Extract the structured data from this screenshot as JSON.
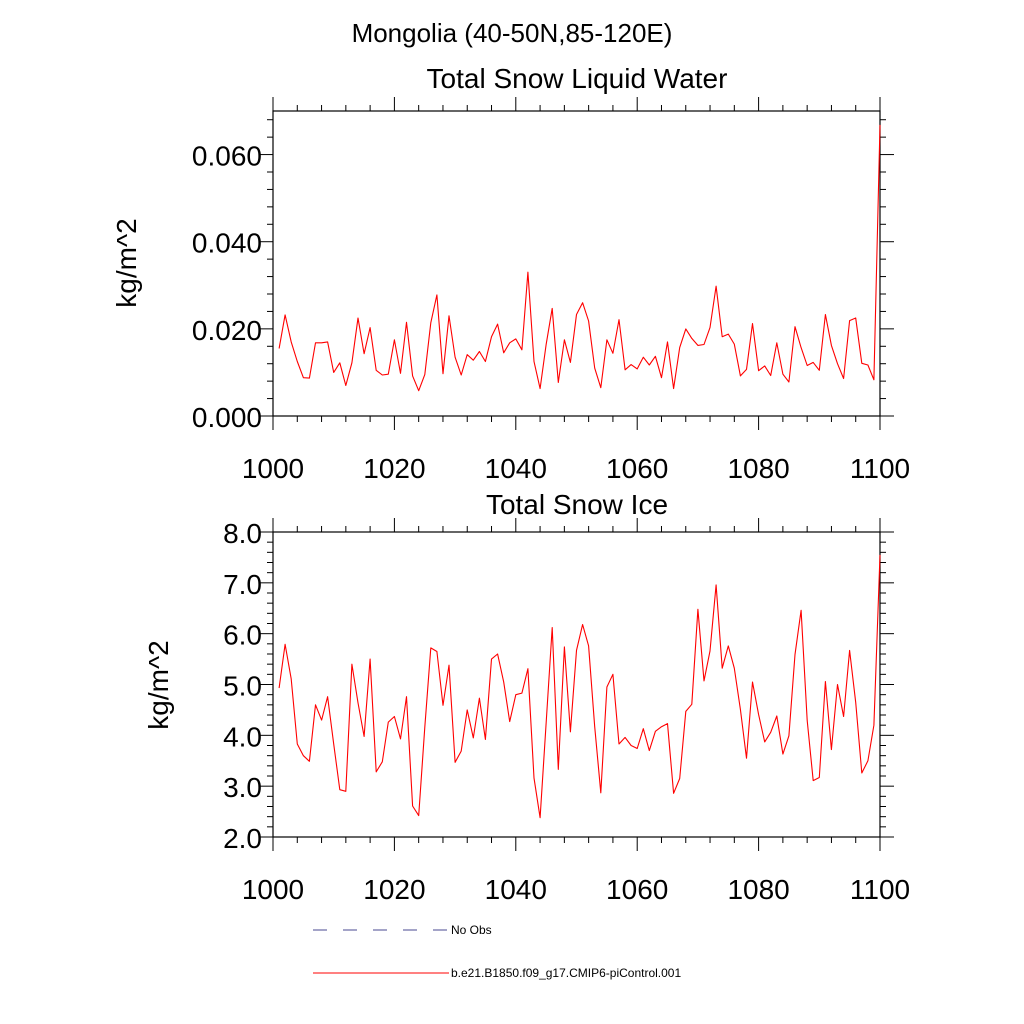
{
  "figure": {
    "suptitle": "Mongolia (40-50N,85-120E)",
    "legend": {
      "position": "bottom-left",
      "entries": [
        {
          "label": "No Obs",
          "style": "dashed",
          "color": "#4a4a90"
        },
        {
          "label": "b.e21.B1850.f09_g17.CMIP6-piControl.001",
          "style": "solid",
          "color": "#ff0000"
        }
      ]
    }
  },
  "chart_data": [
    {
      "type": "line",
      "title": "Total Snow Liquid Water",
      "xlabel": "",
      "ylabel": "kg/m^2",
      "xlim": [
        1000,
        1100
      ],
      "ylim": [
        0,
        0.07
      ],
      "xticks": [
        1000,
        1020,
        1040,
        1060,
        1080,
        1100
      ],
      "yticks": [
        0,
        0.02,
        0.04,
        0.06
      ],
      "ytick_labels": [
        "0.000",
        "0.020",
        "0.040",
        "0.060"
      ],
      "grid": false,
      "series": [
        {
          "name": "b.e21.B1850.f09_g17.CMIP6-piControl.001",
          "color": "#ff0000",
          "x_start": 1001,
          "x_step": 1,
          "values": [
            0.0155,
            0.0232,
            0.017,
            0.0125,
            0.0088,
            0.0087,
            0.0168,
            0.0168,
            0.017,
            0.01,
            0.0122,
            0.007,
            0.0122,
            0.0225,
            0.0143,
            0.0203,
            0.0105,
            0.0094,
            0.0096,
            0.0175,
            0.0098,
            0.0215,
            0.0092,
            0.0058,
            0.0095,
            0.0214,
            0.0278,
            0.0097,
            0.023,
            0.0135,
            0.0094,
            0.0141,
            0.0128,
            0.0148,
            0.0125,
            0.0182,
            0.0211,
            0.0145,
            0.0168,
            0.0177,
            0.0152,
            0.033,
            0.0125,
            0.0063,
            0.0165,
            0.0247,
            0.0077,
            0.0175,
            0.0123,
            0.0233,
            0.026,
            0.0218,
            0.011,
            0.0065,
            0.0175,
            0.0144,
            0.0221,
            0.0106,
            0.0118,
            0.0108,
            0.0135,
            0.0117,
            0.0137,
            0.0088,
            0.017,
            0.0063,
            0.0157,
            0.02,
            0.0178,
            0.0162,
            0.0164,
            0.0203,
            0.0298,
            0.0182,
            0.0188,
            0.0165,
            0.0092,
            0.0107,
            0.0212,
            0.0104,
            0.0115,
            0.0093,
            0.0168,
            0.0096,
            0.0078,
            0.0205,
            0.0157,
            0.0116,
            0.0123,
            0.0105,
            0.0233,
            0.0162,
            0.012,
            0.0086,
            0.0219,
            0.0225,
            0.0121,
            0.0117,
            0.0083,
            0.0668
          ]
        }
      ]
    },
    {
      "type": "line",
      "title": "Total Snow Ice",
      "xlabel": "",
      "ylabel": "kg/m^2",
      "xlim": [
        1000,
        1100
      ],
      "ylim": [
        2.0,
        8.0
      ],
      "xticks": [
        1000,
        1020,
        1040,
        1060,
        1080,
        1100
      ],
      "yticks": [
        2,
        3,
        4,
        5,
        6,
        7,
        8
      ],
      "ytick_labels": [
        "2.0",
        "3.0",
        "4.0",
        "5.0",
        "6.0",
        "7.0",
        "8.0"
      ],
      "grid": false,
      "series": [
        {
          "name": "b.e21.B1850.f09_g17.CMIP6-piControl.001",
          "color": "#ff0000",
          "x_start": 1001,
          "x_step": 1,
          "values": [
            4.93,
            5.79,
            5.11,
            3.83,
            3.6,
            3.49,
            4.6,
            4.3,
            4.76,
            3.83,
            2.93,
            2.9,
            5.4,
            4.64,
            3.98,
            5.5,
            3.28,
            3.48,
            4.26,
            4.37,
            3.93,
            4.76,
            2.61,
            2.42,
            4.16,
            5.72,
            5.65,
            4.59,
            5.38,
            3.47,
            3.69,
            4.5,
            3.95,
            4.73,
            3.92,
            5.5,
            5.6,
            5.05,
            4.27,
            4.8,
            4.83,
            5.31,
            3.16,
            2.38,
            4.26,
            6.12,
            3.33,
            5.74,
            4.07,
            5.67,
            6.18,
            5.76,
            4.17,
            2.87,
            4.95,
            5.2,
            3.83,
            3.96,
            3.8,
            3.74,
            4.13,
            3.7,
            4.08,
            4.17,
            4.23,
            2.86,
            3.15,
            4.47,
            4.61,
            6.48,
            5.07,
            5.66,
            6.96,
            5.32,
            5.76,
            5.32,
            4.51,
            3.55,
            5.05,
            4.41,
            3.87,
            4.06,
            4.38,
            3.63,
            3.99,
            5.59,
            6.46,
            4.29,
            3.11,
            3.17,
            5.06,
            3.72,
            5.0,
            4.37,
            5.67,
            4.65,
            3.26,
            3.5,
            4.2,
            7.55
          ]
        }
      ]
    }
  ]
}
